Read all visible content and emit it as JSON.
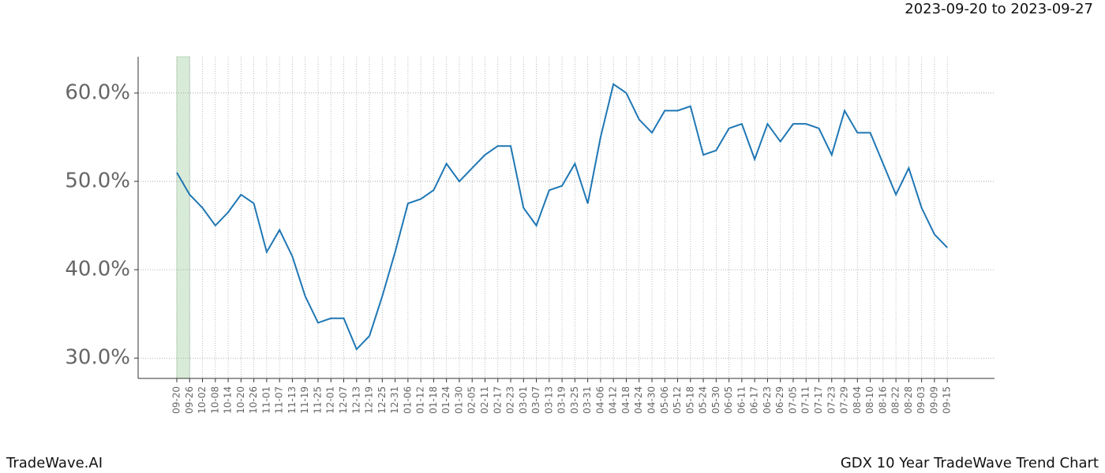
{
  "chart_data": {
    "type": "line",
    "header": "2023-09-20 to 2023-09-27",
    "footer_left": "TradeWave.AI",
    "footer_right": "GDX 10 Year TradeWave Trend Chart",
    "categories": [
      "09-20",
      "09-26",
      "10-02",
      "10-08",
      "10-14",
      "10-20",
      "10-26",
      "11-01",
      "11-07",
      "11-13",
      "11-19",
      "11-25",
      "12-01",
      "12-07",
      "12-13",
      "12-19",
      "12-25",
      "12-31",
      "01-06",
      "01-12",
      "01-18",
      "01-24",
      "01-30",
      "02-05",
      "02-11",
      "02-17",
      "02-23",
      "03-01",
      "03-07",
      "03-13",
      "03-19",
      "03-25",
      "03-31",
      "04-06",
      "04-12",
      "04-18",
      "04-24",
      "04-30",
      "05-06",
      "05-12",
      "05-18",
      "05-24",
      "05-30",
      "06-05",
      "06-11",
      "06-17",
      "06-23",
      "06-29",
      "07-05",
      "07-11",
      "07-17",
      "07-23",
      "07-29",
      "08-04",
      "08-10",
      "08-16",
      "08-22",
      "08-28",
      "09-03",
      "09-09",
      "09-15"
    ],
    "series": [
      {
        "color": "#1f77b4",
        "values": [
          51,
          48.5,
          47,
          45,
          46.5,
          48.5,
          47.5,
          42,
          44.5,
          41.5,
          37,
          34,
          34.5,
          34.5,
          31,
          32.5,
          37,
          42,
          47.5,
          48,
          49,
          52,
          50,
          51.5,
          53,
          54,
          54,
          47,
          45,
          49,
          49.5,
          52,
          47.5,
          55,
          61,
          60,
          57,
          55.5,
          58,
          58,
          58.5,
          53,
          53.5,
          56,
          56.5,
          52.5,
          56.5,
          54.5,
          56.5,
          56.5,
          56,
          53,
          58,
          55.5,
          55.5,
          52,
          48.5,
          51.5,
          47,
          44,
          42.5
        ]
      }
    ],
    "ylim": [
      27.7,
      64.1
    ],
    "yticks": [
      {
        "value": 30,
        "label": "30.0%"
      },
      {
        "value": 40,
        "label": "40.0%"
      },
      {
        "value": 50,
        "label": "50.0%"
      },
      {
        "value": 60,
        "label": "60.0%"
      }
    ],
    "grid": true,
    "highlight": [
      "09-20",
      "09-26"
    ],
    "highlight_color": "#d8ebd8"
  }
}
